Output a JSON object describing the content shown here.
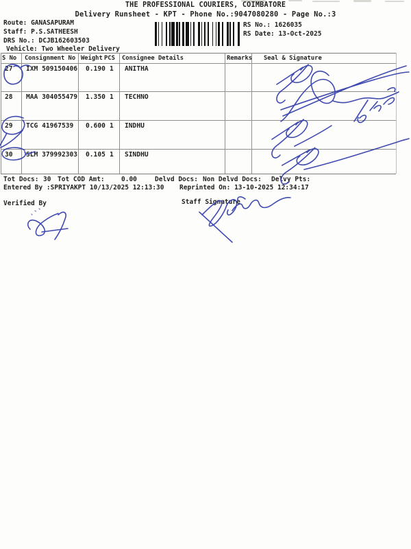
{
  "page": {
    "paper_color": "#fdfdfc",
    "ink_color": "#1f1f1f",
    "pen_color": "#2e3aa8",
    "grid_color": "#8f8f8f"
  },
  "header": {
    "title": "THE PROFESSIONAL COURIERS, COIMBATORE",
    "subtitle": "Delivery Runsheet - KPT - Phone No.:9047080280 - Page No.:3",
    "route_label": "Route:",
    "route_value": "GANASAPURAM",
    "staff_label": "Staff:",
    "staff_value": "P.S.SATHEESH",
    "drs_label": "DRS No.:",
    "drs_value": "DCJB162603503",
    "vehicle_label": "Vehicle:",
    "vehicle_value": "Two Wheeler Delivery",
    "rs_no_label": "RS No.:",
    "rs_no_value": "1626035",
    "rs_date_label": "RS Date:",
    "rs_date_value": "13-Oct-2025",
    "barcode_pattern": "21121312113121122131121321121213121122132112132"
  },
  "table": {
    "columns": {
      "sno": "S No",
      "consignment": "Consignment No",
      "weight": "Weight",
      "pcs": "PCS",
      "consignee": "Consignee Details",
      "remarks": "Remarks",
      "seal": "Seal & Signature"
    },
    "rows": [
      {
        "sno": "27",
        "consignment": "IXM 509150406",
        "weight": "0.190",
        "pcs": "1",
        "consignee": "ANITHA",
        "remarks": ""
      },
      {
        "sno": "28",
        "consignment": "MAA 304055479",
        "weight": "1.350",
        "pcs": "1",
        "consignee": "TECHNO",
        "remarks": ""
      },
      {
        "sno": "29",
        "consignment": "TCG 41967539",
        "weight": "0.600",
        "pcs": "1",
        "consignee": "INDHU",
        "remarks": ""
      },
      {
        "sno": "30",
        "consignment": "SLM 379992303",
        "weight": "0.105",
        "pcs": "1",
        "consignee": "SINDHU",
        "remarks": ""
      }
    ],
    "pen_annotations": {
      "circled_serials": [
        "27",
        "29",
        "30"
      ],
      "signed_rows": [
        "27",
        "28",
        "29",
        "30"
      ]
    }
  },
  "summary": {
    "tot_docs_label": "Tot Docs:",
    "tot_docs_value": "30",
    "tot_cod_label": "Tot COD Amt:",
    "tot_cod_value": "0.00",
    "delvd_label": "Delvd Docs:",
    "non_delvd_label": "Non Delvd Docs:",
    "delvy_pts_label": "Delvy Pts:",
    "entered_by": "Entered By :SPRIYAKPT 10/13/2025 12:13:30",
    "reprinted_on": "Reprinted On: 13-10-2025 12:34:17",
    "verified_by_label": "Verified By",
    "staff_signature_label": "Staff Signature"
  }
}
